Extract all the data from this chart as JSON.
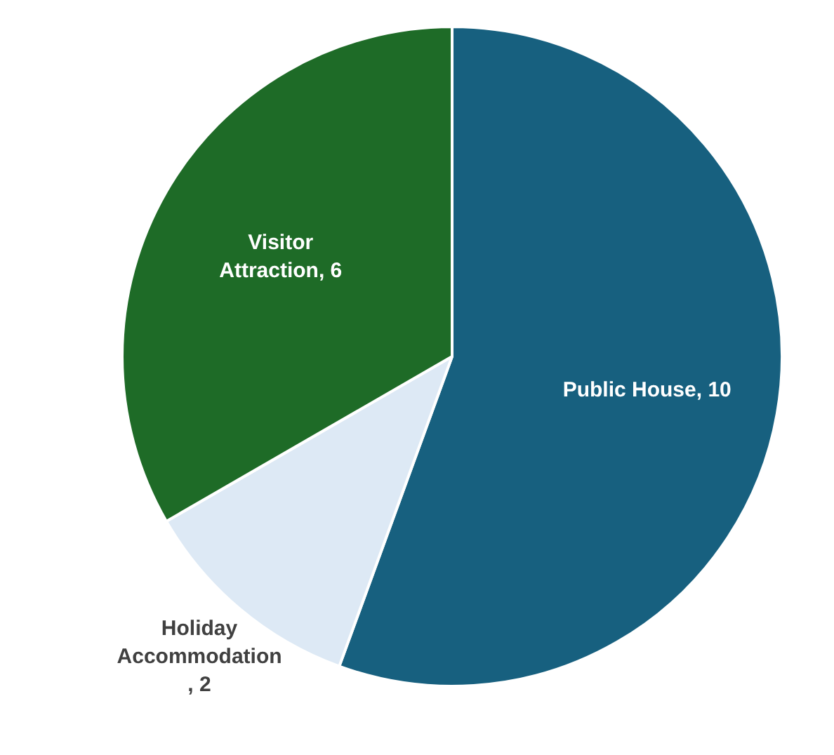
{
  "chart_data": {
    "type": "pie",
    "categories": [
      "Public House",
      "Holiday Accommodation",
      "Visitor Attraction"
    ],
    "values": [
      10,
      2,
      6
    ],
    "value_labels": [
      ", 10",
      ", 2",
      ", 6"
    ],
    "colors": [
      "#17607f",
      "#dde9f5",
      "#1e6b27"
    ],
    "legend": false
  }
}
